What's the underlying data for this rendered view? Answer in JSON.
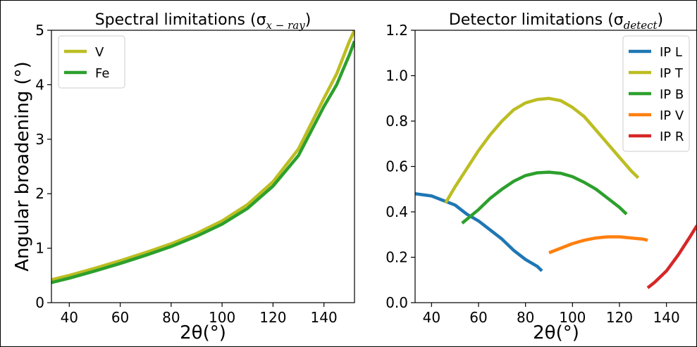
{
  "figure": {
    "ylabel_left": "Angular broadening (°)"
  },
  "chart_data": [
    {
      "type": "line",
      "title": "Spectral limitations (σ",
      "title_subscript": "x − ray",
      "title_close": ")",
      "xlabel": "2θ(°)",
      "ylabel": "Angular broadening (°)",
      "xlim": [
        33,
        152
      ],
      "ylim": [
        0,
        5
      ],
      "xticks": [
        40,
        60,
        80,
        100,
        120,
        140
      ],
      "yticks": [
        0,
        1,
        2,
        3,
        4,
        5
      ],
      "ytick_labels": [
        "0",
        "1",
        "2",
        "3",
        "4",
        "5"
      ],
      "legend_position": "top-left",
      "series": [
        {
          "name": "V",
          "color": "#bcbd22",
          "x": [
            33,
            40,
            50,
            60,
            70,
            80,
            90,
            100,
            110,
            120,
            130,
            140,
            145,
            150,
            152
          ],
          "y": [
            0.42,
            0.5,
            0.63,
            0.77,
            0.92,
            1.08,
            1.27,
            1.5,
            1.8,
            2.22,
            2.82,
            3.75,
            4.2,
            4.8,
            5.0
          ]
        },
        {
          "name": "Fe",
          "color": "#2ca02c",
          "x": [
            33,
            40,
            50,
            60,
            70,
            80,
            90,
            100,
            110,
            120,
            130,
            140,
            145,
            150,
            152
          ],
          "y": [
            0.37,
            0.45,
            0.58,
            0.72,
            0.87,
            1.03,
            1.22,
            1.44,
            1.73,
            2.14,
            2.7,
            3.6,
            4.0,
            4.55,
            4.8
          ]
        }
      ]
    },
    {
      "type": "line",
      "title": "Detector limitations (σ",
      "title_subscript": "detect",
      "title_close": ")",
      "xlabel": "2θ(°)",
      "ylabel": "",
      "xlim": [
        33,
        153
      ],
      "ylim": [
        0,
        1.2
      ],
      "xticks": [
        40,
        60,
        80,
        100,
        120,
        140
      ],
      "yticks": [
        0,
        0.2,
        0.4,
        0.6,
        0.8,
        1.0,
        1.2
      ],
      "ytick_labels": [
        "0.0",
        "0.2",
        "0.4",
        "0.6",
        "0.8",
        "1.0",
        "1.2"
      ],
      "legend_position": "top-right",
      "series": [
        {
          "name": "IP L",
          "color": "#1f77b4",
          "x": [
            33,
            40,
            45,
            50,
            55,
            60,
            65,
            70,
            75,
            80,
            85,
            87
          ],
          "y": [
            0.48,
            0.47,
            0.45,
            0.43,
            0.39,
            0.36,
            0.32,
            0.28,
            0.23,
            0.19,
            0.16,
            0.14
          ]
        },
        {
          "name": "IP T",
          "color": "#bcbd22",
          "x": [
            46,
            50,
            55,
            60,
            65,
            70,
            75,
            80,
            85,
            90,
            95,
            100,
            105,
            110,
            115,
            120,
            125,
            128
          ],
          "y": [
            0.44,
            0.51,
            0.59,
            0.67,
            0.74,
            0.8,
            0.85,
            0.88,
            0.895,
            0.9,
            0.89,
            0.86,
            0.82,
            0.76,
            0.7,
            0.64,
            0.58,
            0.55
          ]
        },
        {
          "name": "IP B",
          "color": "#2ca02c",
          "x": [
            53,
            60,
            65,
            70,
            75,
            80,
            85,
            90,
            95,
            100,
            105,
            110,
            115,
            120,
            123
          ],
          "y": [
            0.35,
            0.41,
            0.46,
            0.5,
            0.535,
            0.56,
            0.572,
            0.575,
            0.57,
            0.555,
            0.53,
            0.5,
            0.46,
            0.42,
            0.39
          ]
        },
        {
          "name": "IP V",
          "color": "#ff7f0e",
          "x": [
            90,
            95,
            100,
            105,
            110,
            115,
            120,
            125,
            130,
            132
          ],
          "y": [
            0.22,
            0.24,
            0.26,
            0.275,
            0.285,
            0.29,
            0.29,
            0.285,
            0.28,
            0.275
          ]
        },
        {
          "name": "IP R",
          "color": "#d62728",
          "x": [
            132,
            135,
            140,
            145,
            150,
            153
          ],
          "y": [
            0.065,
            0.09,
            0.14,
            0.21,
            0.29,
            0.34
          ]
        }
      ]
    }
  ]
}
